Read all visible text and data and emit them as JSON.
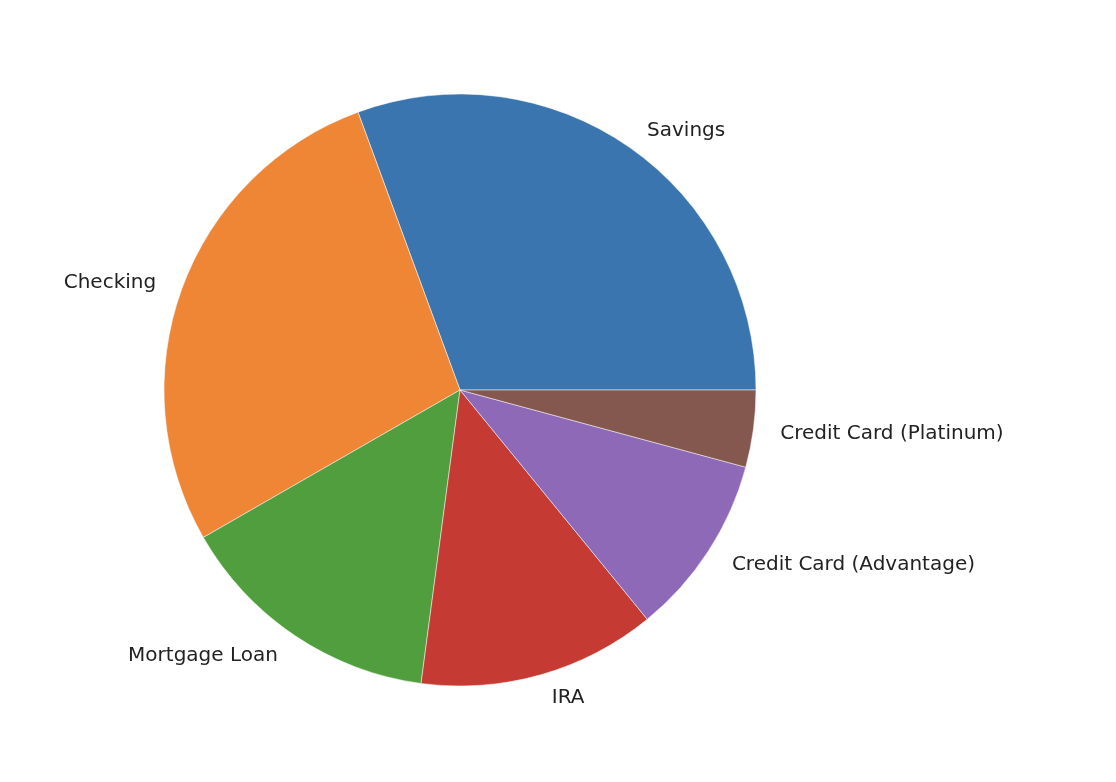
{
  "chart_data": {
    "type": "pie",
    "categories": [
      "Savings",
      "Checking",
      "Mortgage Loan",
      "IRA",
      "Credit Card (Advantage)",
      "Credit Card (Platinum)"
    ],
    "values": [
      30.6,
      27.7,
      14.6,
      13.0,
      9.9,
      4.2
    ],
    "colors": [
      "#3a75af",
      "#ef8636",
      "#519e3e",
      "#c53a32",
      "#8d69b8",
      "#84584e"
    ]
  }
}
